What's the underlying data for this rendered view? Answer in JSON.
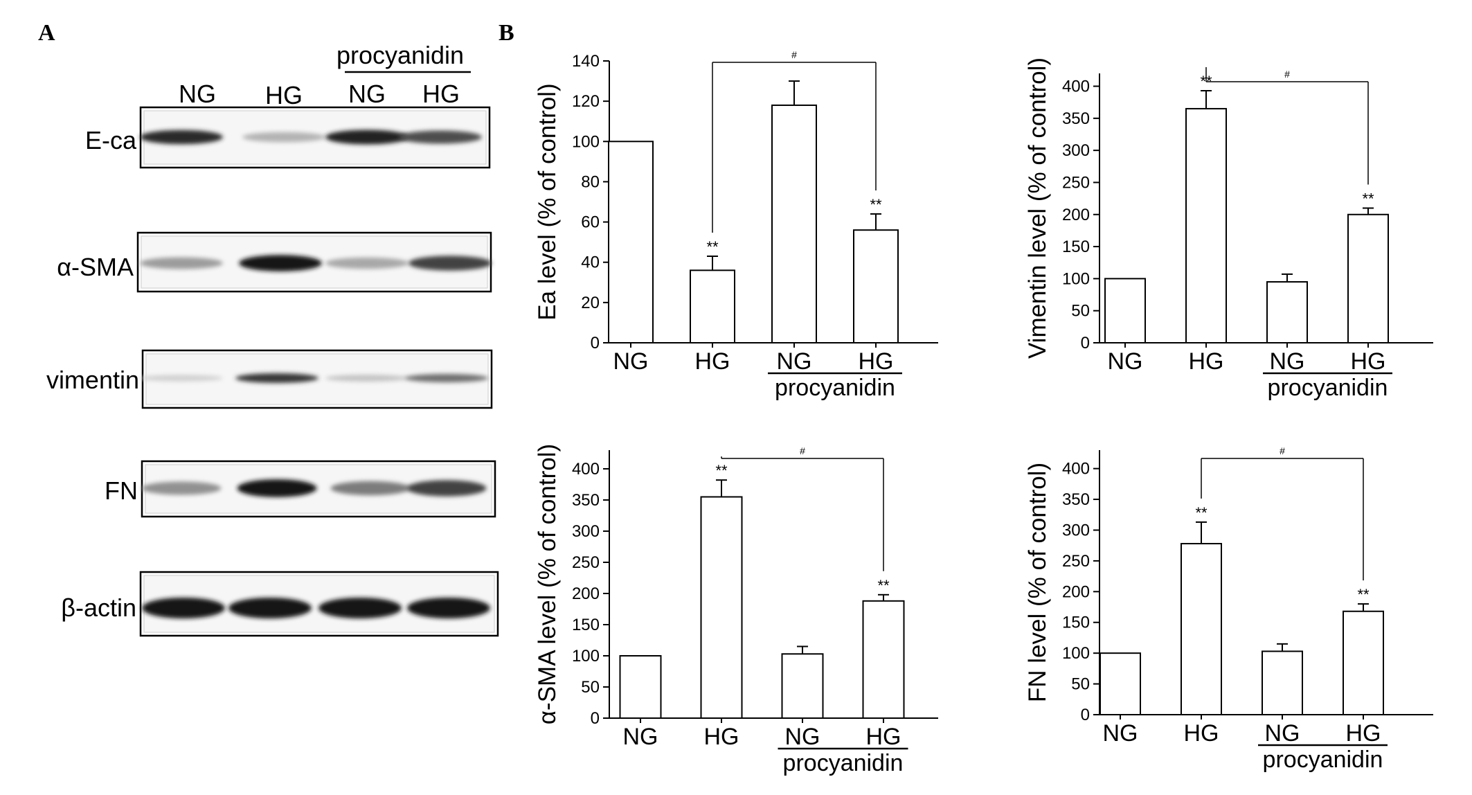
{
  "panels": {
    "a": "A",
    "b": "B"
  },
  "blot": {
    "treatment_label": "procyanidin",
    "lanes": [
      "NG",
      "HG",
      "NG",
      "HG"
    ],
    "rows": [
      {
        "label": "E-ca",
        "intensities": [
          0.85,
          0.25,
          0.9,
          0.7
        ]
      },
      {
        "label": "α-SMA",
        "intensities": [
          0.35,
          0.95,
          0.3,
          0.75
        ]
      },
      {
        "label": "vimentin",
        "intensities": [
          0.12,
          0.8,
          0.18,
          0.55
        ]
      },
      {
        "label": "FN",
        "intensities": [
          0.4,
          0.95,
          0.5,
          0.75
        ]
      },
      {
        "label": "β-actin",
        "intensities": [
          0.95,
          0.95,
          0.95,
          0.95
        ]
      }
    ]
  },
  "chart_data": [
    {
      "type": "bar",
      "ylabel": "Ea level (% of control)",
      "categories": [
        "NG",
        "HG",
        "NG",
        "HG"
      ],
      "group_label": "procyanidin",
      "values": [
        100,
        36,
        118,
        56
      ],
      "errors": [
        0,
        7,
        12,
        8
      ],
      "significance": [
        "",
        "**",
        "",
        "**"
      ],
      "comparison": {
        "from": 1,
        "to": 3,
        "label": "#"
      },
      "ylim": [
        0,
        140
      ],
      "yticks": [
        0,
        20,
        40,
        60,
        80,
        100,
        120,
        140
      ]
    },
    {
      "type": "bar",
      "ylabel": "Vimentin level (% of control)",
      "categories": [
        "NG",
        "HG",
        "NG",
        "HG"
      ],
      "group_label": "procyanidin",
      "values": [
        100,
        365,
        95,
        200
      ],
      "errors": [
        0,
        28,
        12,
        10
      ],
      "significance": [
        "",
        "**",
        "",
        "**"
      ],
      "comparison": {
        "from": 1,
        "to": 3,
        "label": "#"
      },
      "ylim": [
        0,
        420
      ],
      "yticks": [
        0,
        50,
        100,
        150,
        200,
        250,
        300,
        350,
        400
      ]
    },
    {
      "type": "bar",
      "ylabel": "α-SMA level (% of control)",
      "categories": [
        "NG",
        "HG",
        "NG",
        "HG"
      ],
      "group_label": "procyanidin",
      "values": [
        100,
        355,
        103,
        188
      ],
      "errors": [
        0,
        27,
        12,
        10
      ],
      "significance": [
        "",
        "**",
        "",
        "**"
      ],
      "comparison": {
        "from": 1,
        "to": 3,
        "label": "#"
      },
      "ylim": [
        0,
        430
      ],
      "yticks": [
        0,
        50,
        100,
        150,
        200,
        250,
        300,
        350,
        400
      ]
    },
    {
      "type": "bar",
      "ylabel": "FN level (% of control)",
      "categories": [
        "NG",
        "HG",
        "NG",
        "HG"
      ],
      "group_label": "procyanidin",
      "values": [
        100,
        278,
        103,
        168
      ],
      "errors": [
        0,
        35,
        12,
        12
      ],
      "significance": [
        "",
        "**",
        "",
        "**"
      ],
      "comparison": {
        "from": 1,
        "to": 3,
        "label": "#"
      },
      "ylim": [
        0,
        430
      ],
      "yticks": [
        0,
        50,
        100,
        150,
        200,
        250,
        300,
        350,
        400
      ]
    }
  ]
}
